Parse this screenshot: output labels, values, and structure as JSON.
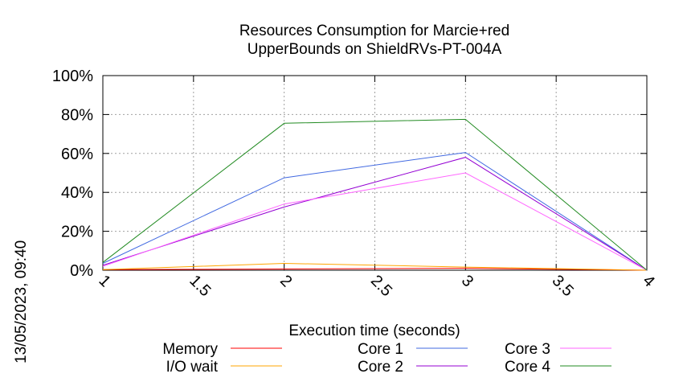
{
  "chart_data": {
    "type": "line",
    "title_line1": "Resources Consumption for Marcie+red",
    "title_line2": "UpperBounds on ShieldRVs-PT-004A",
    "xlabel": "Execution time (seconds)",
    "ylabel": "",
    "timestamp": "13/05/2023, 09:40",
    "xlim": [
      1,
      4
    ],
    "ylim": [
      0,
      100
    ],
    "x_ticks": [
      "1",
      "1.5",
      "2",
      "2.5",
      "3",
      "3.5",
      "4"
    ],
    "x_tick_values": [
      1,
      1.5,
      2,
      2.5,
      3,
      3.5,
      4
    ],
    "y_ticks": [
      "0%",
      "20%",
      "40%",
      "60%",
      "80%",
      "100%"
    ],
    "y_tick_values": [
      0,
      20,
      40,
      60,
      80,
      100
    ],
    "grid": true,
    "legend_position": "bottom",
    "x": [
      1,
      2,
      3,
      4
    ],
    "series": [
      {
        "name": "Memory",
        "color": "#ff0000",
        "values": [
          0.3,
          0.6,
          1.0,
          0
        ]
      },
      {
        "name": "I/O wait",
        "color": "#ffa500",
        "values": [
          0.3,
          3.5,
          1.6,
          0
        ]
      },
      {
        "name": "Core 1",
        "color": "#4169e1",
        "values": [
          3.5,
          47.5,
          60.5,
          0
        ]
      },
      {
        "name": "Core 2",
        "color": "#9400d3",
        "values": [
          2.5,
          32.5,
          58.0,
          0
        ]
      },
      {
        "name": "Core 3",
        "color": "#ff66ff",
        "values": [
          2.0,
          34.0,
          50.0,
          0
        ]
      },
      {
        "name": "Core 4",
        "color": "#228b22",
        "values": [
          4.0,
          75.5,
          77.5,
          0
        ]
      }
    ]
  }
}
